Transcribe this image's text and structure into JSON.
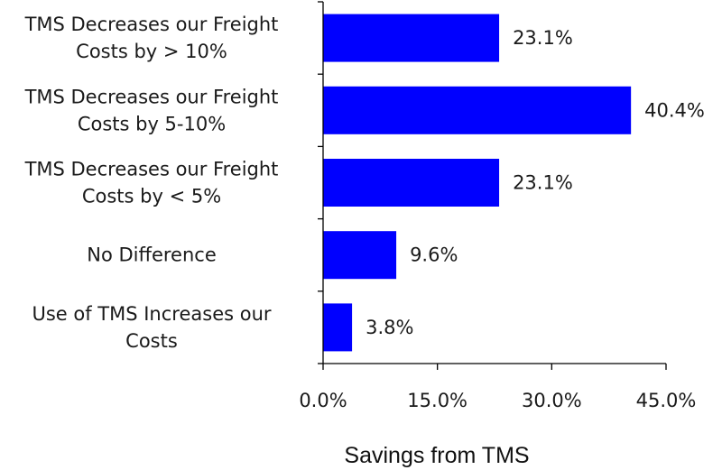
{
  "chart_data": {
    "type": "bar",
    "orientation": "horizontal",
    "categories": [
      [
        "TMS Decreases  our Freight",
        "Costs by > 10%"
      ],
      [
        "TMS Decreases  our Freight",
        "Costs by 5-10%"
      ],
      [
        "TMS Decreases  our Freight",
        "Costs by < 5%"
      ],
      [
        "No Difference"
      ],
      [
        "Use of TMS Increases  our",
        "Costs"
      ]
    ],
    "values": [
      23.1,
      40.4,
      23.1,
      9.6,
      3.8
    ],
    "value_labels": [
      "23.1%",
      "40.4%",
      "23.1%",
      "9.6%",
      "3.8%"
    ],
    "xlim": [
      0,
      45
    ],
    "x_ticks": [
      0,
      15,
      30,
      45
    ],
    "x_tick_labels": [
      "0.0%",
      "15.0%",
      "30.0%",
      "45.0%"
    ],
    "xlabel": "Savings from TMS",
    "ylabel": "",
    "title": "",
    "bar_color": "#0000ff",
    "grid": false,
    "legend": "none"
  }
}
